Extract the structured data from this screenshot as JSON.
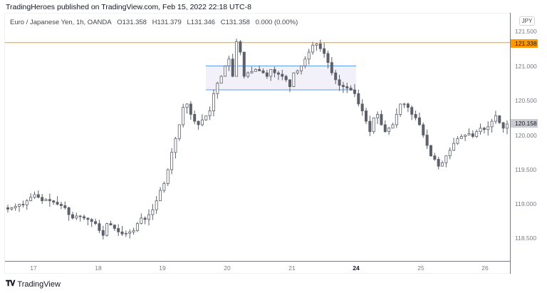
{
  "header": {
    "published": "TradingHeroes published on TradingView.com, Feb 15, 2022 22:18 UTC-8"
  },
  "legend": {
    "symbol": "Euro / Japanese Yen, 1h, OANDA",
    "open": "O131.358",
    "high": "H131.379",
    "low": "L131.346",
    "close": "C131.358",
    "change": "0.000 (0.00%)"
  },
  "price_axis": {
    "currency": "JPY",
    "ticks": [
      "121.500",
      "121.000",
      "120.500",
      "120.000",
      "119.500",
      "119.000",
      "118.500"
    ],
    "horizontal_line_label": "121.338",
    "last_price_label": "120.158"
  },
  "time_axis": {
    "ticks": [
      "17",
      "18",
      "19",
      "20",
      "21",
      "24",
      "25",
      "26"
    ]
  },
  "footer": {
    "brand": "TradingView"
  },
  "colors": {
    "horizontal_line": "#ff9800",
    "rectangle_border": "#5b9cf6",
    "rectangle_fill": "#ede9f6",
    "candle_up": "#ffffff",
    "candle_down": "#5d606b",
    "wick": "#5d606b"
  },
  "chart_data": {
    "type": "candlestick",
    "title": "Euro / Japanese Yen, 1h, OANDA",
    "xlabel": "",
    "ylabel": "JPY",
    "ylim": [
      118.3,
      121.75
    ],
    "x_tick_labels": [
      "17",
      "18",
      "19",
      "20",
      "21",
      "24",
      "25",
      "26"
    ],
    "y_tick_labels": [
      "121.500",
      "121.000",
      "120.500",
      "120.000",
      "119.500",
      "119.000",
      "118.500"
    ],
    "annotations": [
      {
        "type": "horizontal_line",
        "price": 121.338,
        "color": "#ff9800"
      },
      {
        "type": "rectangle",
        "price_top": 121.0,
        "price_bottom": 120.655,
        "x_start_label": "~19 late",
        "x_end_label": "~21 late"
      },
      {
        "type": "last_price",
        "price": 120.158
      }
    ],
    "close_path": [
      118.93,
      118.95,
      118.97,
      119.0,
      118.99,
      119.05,
      119.1,
      119.14,
      119.1,
      119.05,
      119.07,
      119.05,
      119.03,
      119.0,
      118.98,
      118.95,
      118.85,
      118.8,
      118.83,
      118.82,
      118.8,
      118.78,
      118.75,
      118.72,
      118.62,
      118.55,
      118.72,
      118.7,
      118.65,
      118.6,
      118.57,
      118.58,
      118.6,
      118.62,
      118.72,
      118.8,
      118.78,
      118.85,
      118.92,
      119.05,
      119.2,
      119.3,
      119.5,
      119.75,
      119.95,
      120.15,
      120.4,
      120.45,
      120.3,
      120.2,
      120.15,
      120.22,
      120.28,
      120.35,
      120.6,
      120.75,
      120.85,
      121.0,
      121.1,
      120.85,
      121.35,
      121.2,
      120.85,
      120.9,
      120.92,
      120.95,
      120.93,
      120.9,
      120.85,
      120.95,
      120.9,
      120.88,
      120.85,
      120.8,
      120.7,
      120.9,
      120.93,
      121.0,
      121.1,
      121.2,
      121.3,
      121.32,
      121.25,
      121.18,
      121.05,
      120.9,
      120.8,
      120.72,
      120.7,
      120.68,
      120.65,
      120.6,
      120.45,
      120.35,
      120.2,
      120.05,
      120.25,
      120.3,
      120.15,
      120.05,
      120.1,
      120.15,
      120.3,
      120.45,
      120.45,
      120.4,
      120.3,
      120.25,
      120.15,
      120.0,
      119.85,
      119.7,
      119.65,
      119.55,
      119.6,
      119.7,
      119.78,
      119.88,
      119.95,
      119.98,
      120.0,
      120.02,
      119.98,
      120.05,
      120.1,
      120.08,
      120.12,
      120.2,
      120.28,
      120.18,
      120.1,
      120.16
    ]
  }
}
